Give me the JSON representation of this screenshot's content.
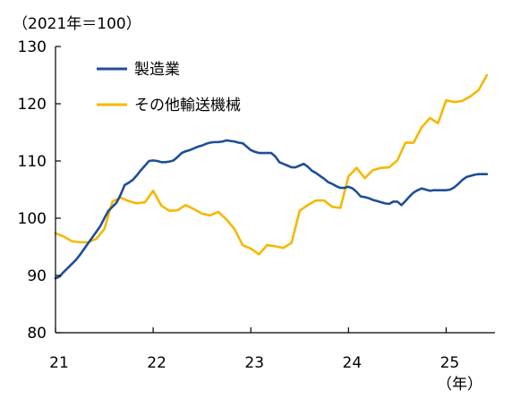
{
  "chart_data": {
    "type": "line",
    "unit_label": "（2021年＝100）",
    "x_unit_label": "（年）",
    "ylim": [
      80,
      130
    ],
    "yticks": [
      80,
      90,
      100,
      110,
      120,
      130
    ],
    "xlim": [
      2021,
      2025.5
    ],
    "xticks": [
      {
        "value": 2021,
        "label": "21"
      },
      {
        "value": 2022,
        "label": "22"
      },
      {
        "value": 2023,
        "label": "23"
      },
      {
        "value": 2024,
        "label": "24"
      },
      {
        "value": 2025,
        "label": "25"
      }
    ],
    "legend_position": "top-left",
    "grid": false,
    "series": [
      {
        "name": "製造業",
        "color": "#1f4e96",
        "x": [
          2021.0,
          2021.0417,
          2021.0833,
          2021.125,
          2021.1667,
          2021.2083,
          2021.25,
          2021.2917,
          2021.3333,
          2021.375,
          2021.4167,
          2021.4583,
          2021.5,
          2021.5417,
          2021.5833,
          2021.625,
          2021.6667,
          2021.7083,
          2021.75,
          2021.7917,
          2021.8333,
          2021.875,
          2021.9167,
          2021.9583,
          2022.0,
          2022.0417,
          2022.0833,
          2022.125,
          2022.1667,
          2022.2083,
          2022.25,
          2022.2917,
          2022.3333,
          2022.375,
          2022.4167,
          2022.4583,
          2022.5,
          2022.5417,
          2022.5833,
          2022.625,
          2022.6667,
          2022.7083,
          2022.75,
          2022.7917,
          2022.8333,
          2022.875,
          2022.9167,
          2022.9583,
          2023.0,
          2023.0417,
          2023.0833,
          2023.125,
          2023.1667,
          2023.2083,
          2023.25,
          2023.2917,
          2023.3333,
          2023.375,
          2023.4167,
          2023.4583,
          2023.5,
          2023.5417,
          2023.5833,
          2023.625,
          2023.6667,
          2023.7083,
          2023.75,
          2023.7917,
          2023.8333,
          2023.875,
          2023.9167,
          2023.9583,
          2024.0,
          2024.0417,
          2024.0833,
          2024.125,
          2024.1667,
          2024.2083,
          2024.25,
          2024.2917,
          2024.3333,
          2024.375,
          2024.4167,
          2024.4583,
          2024.5,
          2024.5417,
          2024.5833,
          2024.625,
          2024.6667,
          2024.7083,
          2024.75,
          2024.7917,
          2024.8333,
          2024.875,
          2024.9167,
          2024.9583,
          2025.0,
          2025.0417,
          2025.0833,
          2025.125,
          2025.1667,
          2025.2083,
          2025.25,
          2025.2917,
          2025.3333,
          2025.375,
          2025.4167
        ],
        "values": [
          89.5,
          89.8,
          90.6,
          91.3,
          92.0,
          92.7,
          93.6,
          94.6,
          95.6,
          96.6,
          97.6,
          98.6,
          100.0,
          101.3,
          102.0,
          102.7,
          104.1,
          105.8,
          106.2,
          106.7,
          107.5,
          108.4,
          109.2,
          110.0,
          110.1,
          110.0,
          109.8,
          109.8,
          109.9,
          110.1,
          110.7,
          111.4,
          111.7,
          111.9,
          112.2,
          112.5,
          112.7,
          113.0,
          113.2,
          113.3,
          113.3,
          113.4,
          113.6,
          113.5,
          113.4,
          113.2,
          113.1,
          112.5,
          111.9,
          111.6,
          111.4,
          111.4,
          111.4,
          111.4,
          110.8,
          109.8,
          109.5,
          109.2,
          108.9,
          108.9,
          109.2,
          109.5,
          109.0,
          108.3,
          107.9,
          107.4,
          106.9,
          106.3,
          106.0,
          105.6,
          105.3,
          105.3,
          105.5,
          105.2,
          104.6,
          103.8,
          103.7,
          103.5,
          103.2,
          103.0,
          102.8,
          102.6,
          102.5,
          102.9,
          102.9,
          102.3,
          103.0,
          103.8,
          104.5,
          104.9,
          105.2,
          105.0,
          104.8,
          104.9,
          104.9,
          104.9,
          104.9,
          105.0,
          105.4,
          106.0,
          106.7,
          107.2,
          107.4,
          107.6,
          107.7,
          107.7,
          107.7
        ]
      },
      {
        "name": "その他輸送機械",
        "color": "#f5b800",
        "x": [
          2021.0,
          2021.0833,
          2021.1667,
          2021.25,
          2021.3333,
          2021.4167,
          2021.5,
          2021.5833,
          2021.6667,
          2021.75,
          2021.8333,
          2021.9167,
          2022.0,
          2022.0833,
          2022.1667,
          2022.25,
          2022.3333,
          2022.4167,
          2022.5,
          2022.5833,
          2022.6667,
          2022.75,
          2022.8333,
          2022.9167,
          2023.0,
          2023.0833,
          2023.1667,
          2023.25,
          2023.3333,
          2023.4167,
          2023.5,
          2023.5833,
          2023.6667,
          2023.75,
          2023.8333,
          2023.9167,
          2024.0,
          2024.0833,
          2024.1667,
          2024.25,
          2024.3333,
          2024.4167,
          2024.5,
          2024.5833,
          2024.6667,
          2024.75,
          2024.8333,
          2024.9167,
          2025.0,
          2025.0833,
          2025.1667,
          2025.25,
          2025.3333,
          2025.4167
        ],
        "values": [
          97.4,
          96.8,
          96.0,
          95.8,
          95.8,
          96.4,
          98.1,
          102.9,
          103.6,
          103.0,
          102.6,
          102.8,
          104.8,
          102.2,
          101.3,
          101.4,
          102.3,
          101.6,
          100.8,
          100.5,
          101.1,
          99.8,
          98.1,
          95.3,
          94.7,
          93.7,
          95.3,
          95.1,
          94.8,
          95.7,
          101.3,
          102.3,
          103.1,
          103.1,
          102.0,
          101.8,
          107.3,
          108.8,
          107.0,
          108.4,
          108.8,
          108.9,
          110.1,
          113.2,
          113.2,
          115.9,
          117.5,
          116.6,
          120.6,
          120.3,
          120.5,
          121.3,
          122.4,
          125.0
        ]
      }
    ]
  }
}
